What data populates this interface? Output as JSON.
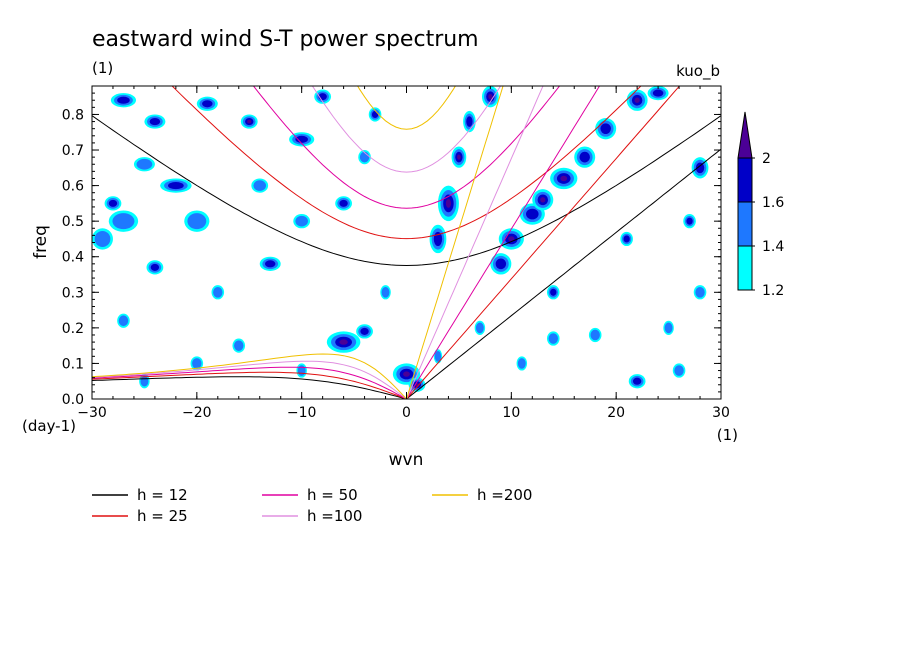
{
  "header": {
    "title": "eastward wind S-T power spectrum",
    "left_unit": "(1)",
    "right_label": "kuo_b"
  },
  "axes": {
    "xlabel": "wvn",
    "ylabel": "freq",
    "x_unit": "(1)",
    "y_unit": "(day-1)"
  },
  "chart_data": {
    "type": "heatmap",
    "title": "eastward wind S-T power spectrum",
    "xlabel": "wvn",
    "ylabel": "freq",
    "xlim": [
      -30,
      30
    ],
    "ylim": [
      0,
      0.88
    ],
    "xticks": [
      -30,
      -20,
      -10,
      0,
      10,
      20,
      30
    ],
    "yticks": [
      0.0,
      0.1,
      0.2,
      0.3,
      0.4,
      0.5,
      0.6,
      0.7,
      0.8
    ],
    "ytick_labels": [
      "0.0",
      "0.1",
      "0.2",
      "0.3",
      "0.4",
      "0.5",
      "0.6",
      "0.7",
      "0.8"
    ],
    "colorbar": {
      "levels": [
        1.2,
        1.4,
        1.6,
        2
      ],
      "colors": [
        "#00ffff",
        "#1e78ff",
        "#0000c8",
        "#4b0096"
      ]
    },
    "curves": [
      {
        "label": "h = 12",
        "h": 12,
        "color": "#000000"
      },
      {
        "label": "h = 25",
        "h": 25,
        "color": "#e01010"
      },
      {
        "label": "h = 50",
        "h": 50,
        "color": "#e000a0"
      },
      {
        "label": "h =100",
        "h": 100,
        "color": "#e090e0"
      },
      {
        "label": "h =200",
        "h": 200,
        "color": "#f0c000"
      }
    ],
    "blobs": [
      [
        0,
        0.07,
        1.3,
        0.03,
        3
      ],
      [
        1,
        0.04,
        0.8,
        0.02,
        3
      ],
      [
        -6,
        0.16,
        1.6,
        0.03,
        3
      ],
      [
        -4,
        0.19,
        0.8,
        0.02,
        2
      ],
      [
        4,
        0.55,
        1.0,
        0.05,
        3
      ],
      [
        3,
        0.45,
        0.8,
        0.04,
        2
      ],
      [
        5,
        0.68,
        0.7,
        0.03,
        3
      ],
      [
        6,
        0.78,
        0.6,
        0.03,
        2
      ],
      [
        8,
        0.85,
        0.8,
        0.03,
        3
      ],
      [
        9,
        0.38,
        1.0,
        0.03,
        2
      ],
      [
        10,
        0.45,
        1.2,
        0.03,
        3
      ],
      [
        12,
        0.52,
        1.2,
        0.03,
        2
      ],
      [
        13,
        0.56,
        1.0,
        0.03,
        3
      ],
      [
        15,
        0.62,
        1.3,
        0.03,
        3
      ],
      [
        17,
        0.68,
        1.0,
        0.03,
        2
      ],
      [
        19,
        0.76,
        1.0,
        0.03,
        2
      ],
      [
        22,
        0.84,
        1.0,
        0.03,
        3
      ],
      [
        24,
        0.86,
        1.0,
        0.02,
        2
      ],
      [
        -27,
        0.84,
        1.2,
        0.02,
        2
      ],
      [
        -24,
        0.78,
        1.0,
        0.02,
        2
      ],
      [
        -22,
        0.6,
        1.5,
        0.02,
        2
      ],
      [
        -28,
        0.55,
        0.8,
        0.02,
        2
      ],
      [
        -19,
        0.83,
        1.0,
        0.02,
        2
      ],
      [
        -15,
        0.78,
        0.8,
        0.02,
        3
      ],
      [
        -10,
        0.73,
        1.2,
        0.02,
        2
      ],
      [
        -6,
        0.55,
        0.8,
        0.02,
        2
      ],
      [
        -13,
        0.38,
        1.0,
        0.02,
        2
      ],
      [
        -24,
        0.37,
        0.8,
        0.02,
        2
      ],
      [
        -18,
        0.3,
        0.6,
        0.02,
        1
      ],
      [
        -29,
        0.45,
        1.0,
        0.03,
        1
      ],
      [
        -27,
        0.5,
        1.4,
        0.03,
        1
      ],
      [
        -25,
        0.66,
        1.0,
        0.02,
        1
      ],
      [
        -20,
        0.5,
        1.2,
        0.03,
        1
      ],
      [
        -14,
        0.6,
        0.8,
        0.02,
        1
      ],
      [
        -10,
        0.5,
        0.8,
        0.02,
        1
      ],
      [
        -4,
        0.68,
        0.6,
        0.02,
        1
      ],
      [
        -8,
        0.85,
        0.8,
        0.02,
        2
      ],
      [
        -3,
        0.8,
        0.6,
        0.02,
        2
      ],
      [
        -20,
        0.1,
        0.6,
        0.02,
        1
      ],
      [
        -10,
        0.08,
        0.5,
        0.02,
        1
      ],
      [
        -25,
        0.05,
        0.5,
        0.02,
        1
      ],
      [
        14,
        0.3,
        0.6,
        0.02,
        2
      ],
      [
        18,
        0.18,
        0.6,
        0.02,
        1
      ],
      [
        22,
        0.05,
        0.8,
        0.02,
        2
      ],
      [
        26,
        0.08,
        0.6,
        0.02,
        1
      ],
      [
        25,
        0.2,
        0.5,
        0.02,
        1
      ],
      [
        28,
        0.3,
        0.6,
        0.02,
        1
      ],
      [
        27,
        0.5,
        0.6,
        0.02,
        2
      ],
      [
        28,
        0.65,
        0.8,
        0.03,
        2
      ],
      [
        21,
        0.45,
        0.6,
        0.02,
        2
      ],
      [
        14,
        0.17,
        0.6,
        0.02,
        1
      ],
      [
        11,
        0.1,
        0.5,
        0.02,
        1
      ],
      [
        -2,
        0.3,
        0.5,
        0.02,
        1
      ],
      [
        -16,
        0.15,
        0.6,
        0.02,
        1
      ],
      [
        -27,
        0.22,
        0.6,
        0.02,
        1
      ],
      [
        7,
        0.2,
        0.5,
        0.02,
        1
      ],
      [
        3,
        0.12,
        0.4,
        0.02,
        1
      ]
    ]
  },
  "legend": [
    {
      "label": "h = 12",
      "color": "#000000"
    },
    {
      "label": "h = 25",
      "color": "#e01010"
    },
    {
      "label": "h = 50",
      "color": "#e000a0"
    },
    {
      "label": "h =100",
      "color": "#e090e0"
    },
    {
      "label": "h =200",
      "color": "#f0c000"
    }
  ]
}
